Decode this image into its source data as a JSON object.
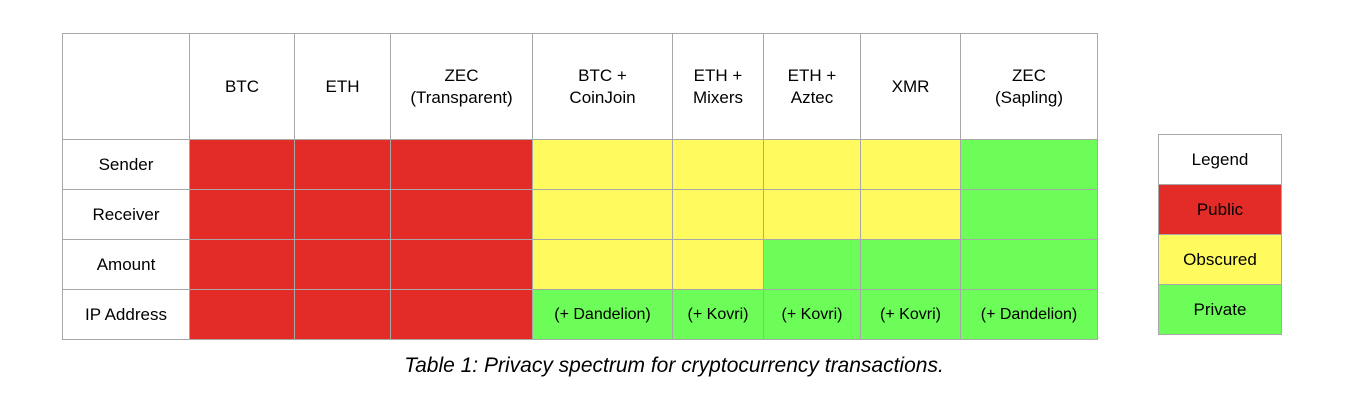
{
  "colors": {
    "public": "#e32b27",
    "obscured": "#fffb5e",
    "private": "#6dfd58",
    "white": "#ffffff"
  },
  "table": {
    "corner": "",
    "columns": [
      "BTC",
      "ETH",
      "ZEC\n(Transparent)",
      "BTC +\nCoinJoin",
      "ETH +\nMixers",
      "ETH +\nAztec",
      "XMR",
      "ZEC\n(Sapling)"
    ],
    "rows": [
      {
        "label": "Sender",
        "cells": [
          {
            "status": "public",
            "text": ""
          },
          {
            "status": "public",
            "text": ""
          },
          {
            "status": "public",
            "text": ""
          },
          {
            "status": "obscured",
            "text": ""
          },
          {
            "status": "obscured",
            "text": ""
          },
          {
            "status": "obscured",
            "text": ""
          },
          {
            "status": "obscured",
            "text": ""
          },
          {
            "status": "private",
            "text": ""
          }
        ]
      },
      {
        "label": "Receiver",
        "cells": [
          {
            "status": "public",
            "text": ""
          },
          {
            "status": "public",
            "text": ""
          },
          {
            "status": "public",
            "text": ""
          },
          {
            "status": "obscured",
            "text": ""
          },
          {
            "status": "obscured",
            "text": ""
          },
          {
            "status": "obscured",
            "text": ""
          },
          {
            "status": "obscured",
            "text": ""
          },
          {
            "status": "private",
            "text": ""
          }
        ]
      },
      {
        "label": "Amount",
        "cells": [
          {
            "status": "public",
            "text": ""
          },
          {
            "status": "public",
            "text": ""
          },
          {
            "status": "public",
            "text": ""
          },
          {
            "status": "obscured",
            "text": ""
          },
          {
            "status": "obscured",
            "text": ""
          },
          {
            "status": "private",
            "text": ""
          },
          {
            "status": "private",
            "text": ""
          },
          {
            "status": "private",
            "text": ""
          }
        ]
      },
      {
        "label": "IP Address",
        "cells": [
          {
            "status": "public",
            "text": ""
          },
          {
            "status": "public",
            "text": ""
          },
          {
            "status": "public",
            "text": ""
          },
          {
            "status": "private",
            "text": "(+ Dandelion)"
          },
          {
            "status": "private",
            "text": "(+ Kovri)"
          },
          {
            "status": "private",
            "text": "(+ Kovri)"
          },
          {
            "status": "private",
            "text": "(+ Kovri)"
          },
          {
            "status": "private",
            "text": "(+ Dandelion)"
          }
        ]
      }
    ]
  },
  "legend": {
    "title": "Legend",
    "items": [
      {
        "label": "Public",
        "status": "public"
      },
      {
        "label": "Obscured",
        "status": "obscured"
      },
      {
        "label": "Private",
        "status": "private"
      }
    ]
  },
  "caption": "Table 1: Privacy spectrum for cryptocurrency transactions."
}
